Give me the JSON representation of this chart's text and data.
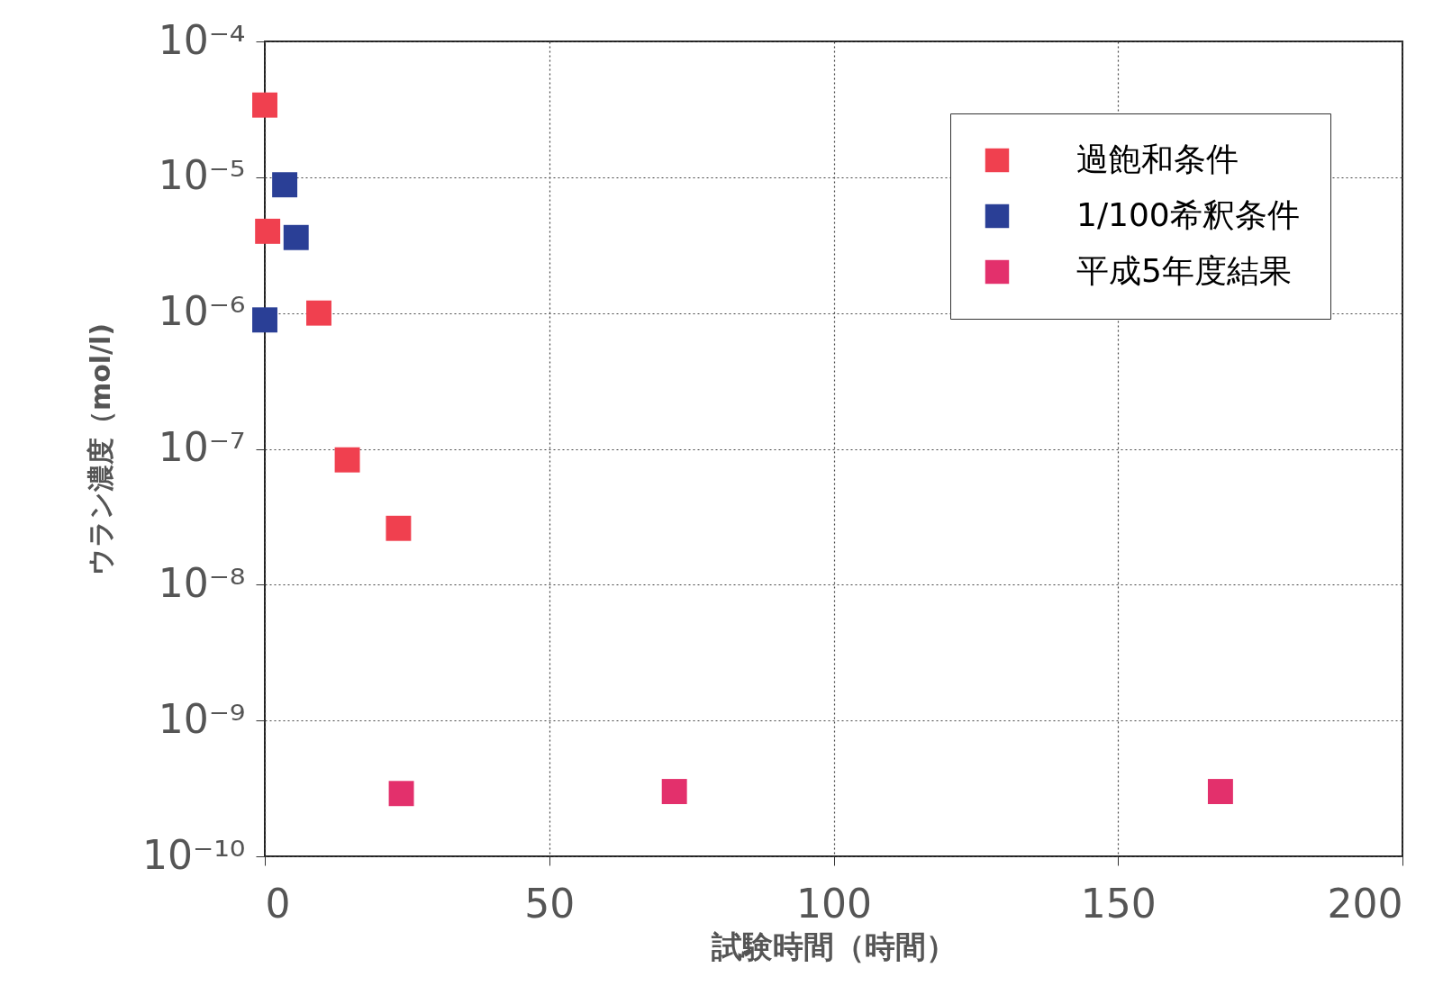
{
  "chart_data": {
    "type": "scatter",
    "xlabel": "試験時間（時間）",
    "ylabel": "ウラン濃度（mol/l)",
    "marker": "square",
    "log": "y",
    "grid": true,
    "legend": "top right",
    "xlim": [
      0,
      200
    ],
    "xticks": [
      0,
      50,
      100,
      150,
      200
    ],
    "ylim": [
      1e-10,
      0.0001
    ],
    "yticks": [
      {
        "value": 1e-10,
        "label": "10⁻¹⁰"
      },
      {
        "value": 1e-09,
        "label": "10⁻⁹"
      },
      {
        "value": 1e-08,
        "label": "10⁻⁸"
      },
      {
        "value": 1e-07,
        "label": "10⁻⁷"
      },
      {
        "value": 1e-06,
        "label": "10⁻⁶"
      },
      {
        "value": 1e-05,
        "label": "10⁻⁵"
      },
      {
        "value": 0.0001,
        "label": "10⁻⁴"
      }
    ],
    "series": [
      {
        "name": "過飽和条件",
        "color": "#f0404f",
        "x": [
          0,
          0.5,
          9.5,
          14.5,
          23.5
        ],
        "values": [
          3.4e-05,
          4e-06,
          1e-06,
          8.3e-08,
          2.6e-08
        ]
      },
      {
        "name": "1/100希釈条件",
        "color": "#2a3f96",
        "x": [
          3.5,
          5.5,
          0
        ],
        "values": [
          8.8e-06,
          3.6e-06,
          8.9e-07
        ]
      },
      {
        "name": "平成5年度結果",
        "color": "#e3306c",
        "x": [
          24,
          72,
          168
        ],
        "values": [
          2.9e-10,
          3e-10,
          3e-10
        ]
      }
    ]
  }
}
